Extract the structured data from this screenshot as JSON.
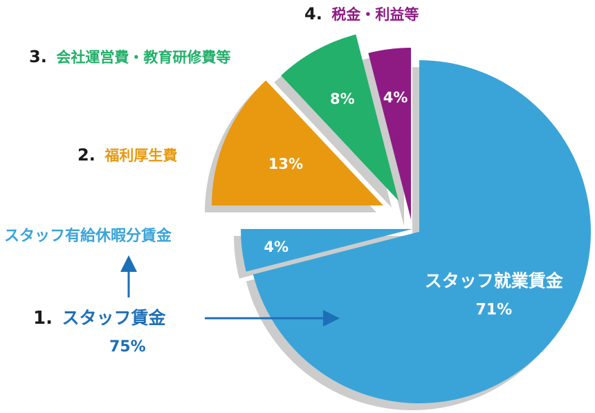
{
  "chart_data": {
    "type": "pie",
    "slices": [
      {
        "id": "staff-work",
        "label": "スタッフ就業賃金",
        "value": 71,
        "display": "71%",
        "color": "#3aa4d9"
      },
      {
        "id": "staff-leave",
        "label": "スタッフ有給休暇分賃金",
        "value": 4,
        "display": "4%",
        "color": "#3aa4d9"
      },
      {
        "id": "welfare",
        "label": "福利厚生費",
        "value": 13,
        "display": "13%",
        "color": "#e8990f"
      },
      {
        "id": "operations",
        "label": "会社運営費・教育研修費等",
        "value": 8,
        "display": "8%",
        "color": "#22b06a"
      },
      {
        "id": "tax",
        "label": "税金・利益等",
        "value": 4,
        "display": "4%",
        "color": "#8e1b84"
      }
    ],
    "groups": [
      {
        "number": "1.",
        "label": "スタッフ賃金",
        "total": "75%",
        "color": "#1d6fb6"
      },
      {
        "number": "2.",
        "label": "福利厚生費",
        "color": "#e8990f"
      },
      {
        "number": "3.",
        "label": "会社運営費・教育研修費等",
        "color": "#22b06a"
      },
      {
        "number": "4.",
        "label": "税金・利益等",
        "color": "#8e1b84"
      }
    ],
    "shadow_color": "#cccccc",
    "arrow_color": "#1d6fb6",
    "leave_label_color": "#3aa4d9"
  }
}
